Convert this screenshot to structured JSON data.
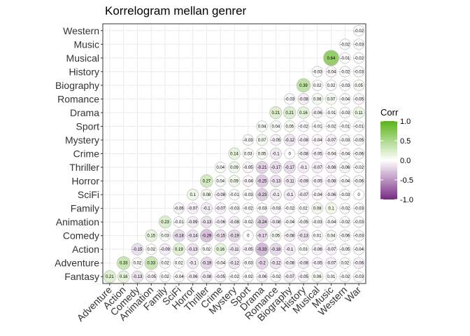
{
  "chart_data": {
    "type": "heatmap",
    "subtype": "correlogram-lower-triangle-circles",
    "title": "Korrelogram mellan genrer",
    "xlabel": "",
    "ylabel": "",
    "x_categories": [
      "Adventure",
      "Action",
      "Comedy",
      "Animation",
      "Family",
      "SciFi",
      "Horror",
      "Thriller",
      "Crime",
      "Mystery",
      "Sport",
      "Drama",
      "Romance",
      "Biography",
      "History",
      "Musical",
      "Music",
      "Western",
      "War"
    ],
    "y_categories": [
      "Fantasy",
      "Adventure",
      "Action",
      "Comedy",
      "Animation",
      "Family",
      "SciFi",
      "Horror",
      "Thriller",
      "Crime",
      "Mystery",
      "Sport",
      "Drama",
      "Romance",
      "Biography",
      "History",
      "Musical",
      "Music",
      "Western"
    ],
    "values": [
      [
        0.21,
        0.16,
        -0.13,
        -0.05,
        0.02,
        -0.04,
        -0.06,
        -0.08,
        -0.05,
        -0.02,
        -0.02,
        -0.06,
        -0.02,
        -0.07,
        -0.05,
        0.06,
        0.01,
        -0.02,
        -0.03
      ],
      [
        null,
        0.33,
        0.02,
        0.33,
        0.02,
        0.02,
        -0.1,
        -0.19,
        -0.04,
        -0.12,
        -0.03,
        -0.2,
        -0.12,
        -0.08,
        -0.08,
        -0.05,
        -0.07,
        0.02,
        -0.06
      ],
      [
        null,
        null,
        -0.15,
        0.02,
        -0.09,
        0.19,
        -0.13,
        0.02,
        0.16,
        -0.11,
        -0.05,
        -0.33,
        -0.18,
        -0.1,
        0.03,
        -0.06,
        -0.07,
        -0.05,
        -0.04
      ],
      [
        null,
        null,
        null,
        0.15,
        0.03,
        -0.18,
        -0.14,
        -0.29,
        -0.15,
        -0.19,
        0,
        -0.17,
        0.05,
        -0.08,
        -0.13,
        0.01,
        0.04,
        -0.06,
        -0.03
      ],
      [
        null,
        null,
        null,
        null,
        0.23,
        -0.01,
        -0.09,
        -0.13,
        -0.06,
        -0.08,
        -0.02,
        -0.24,
        -0.08,
        -0.04,
        -0.05,
        -0.03,
        -0.04,
        -0.02,
        -0.03
      ],
      [
        null,
        null,
        null,
        null,
        null,
        -0.06,
        -0.07,
        -0.1,
        -0.07,
        -0.03,
        -0.02,
        -0.03,
        -0.03,
        -0.02,
        0.02,
        0.08,
        0.1,
        -0.02,
        -0.03
      ],
      [
        null,
        null,
        null,
        null,
        null,
        null,
        0.1,
        0.08,
        -0.08,
        -0.01,
        -0.03,
        -0.23,
        -0.1,
        -0.1,
        -0.07,
        -0.04,
        -0.06,
        -0.03,
        0
      ],
      [
        null,
        null,
        null,
        null,
        null,
        null,
        null,
        0.27,
        0.04,
        0.09,
        -0.04,
        -0.25,
        -0.13,
        -0.11,
        -0.09,
        -0.05,
        -0.08,
        -0.04,
        -0.06
      ],
      [
        null,
        null,
        null,
        null,
        null,
        null,
        null,
        null,
        0.04,
        0.09,
        -0.05,
        -0.21,
        -0.17,
        -0.17,
        -0.1,
        -0.07,
        -0.08,
        -0.06,
        -0.02
      ],
      [
        null,
        null,
        null,
        null,
        null,
        null,
        null,
        null,
        null,
        0.14,
        0.03,
        0.05,
        -0.1,
        0,
        -0.08,
        -0.05,
        -0.04,
        -0.04,
        -0.06
      ],
      [
        null,
        null,
        null,
        null,
        null,
        null,
        null,
        null,
        null,
        null,
        -0.03,
        0.07,
        -0.05,
        -0.12,
        -0.08,
        -0.04,
        -0.07,
        -0.03,
        -0.05
      ],
      [
        null,
        null,
        null,
        null,
        null,
        null,
        null,
        null,
        null,
        null,
        null,
        0.04,
        0.04,
        0.05,
        -0.02,
        -0.01,
        -0.02,
        -0.01,
        -0.01
      ],
      [
        null,
        null,
        null,
        null,
        null,
        null,
        null,
        null,
        null,
        null,
        null,
        null,
        0.21,
        0.21,
        0.16,
        -0.06,
        -0.01,
        -0.03,
        0.11
      ],
      [
        null,
        null,
        null,
        null,
        null,
        null,
        null,
        null,
        null,
        null,
        null,
        null,
        null,
        -0.03,
        -0.08,
        0.06,
        0.07,
        -0.04,
        -0.05
      ],
      [
        null,
        null,
        null,
        null,
        null,
        null,
        null,
        null,
        null,
        null,
        null,
        null,
        null,
        null,
        0.39,
        0.02,
        0.02,
        -0.03,
        0.05
      ],
      [
        null,
        null,
        null,
        null,
        null,
        null,
        null,
        null,
        null,
        null,
        null,
        null,
        null,
        null,
        null,
        -0.03,
        -0.04,
        -0.02,
        -0.03
      ],
      [
        null,
        null,
        null,
        null,
        null,
        null,
        null,
        null,
        null,
        null,
        null,
        null,
        null,
        null,
        null,
        null,
        0.64,
        -0.01,
        -0.02
      ],
      [
        null,
        null,
        null,
        null,
        null,
        null,
        null,
        null,
        null,
        null,
        null,
        null,
        null,
        null,
        null,
        null,
        null,
        -0.02,
        -0.03
      ],
      [
        null,
        null,
        null,
        null,
        null,
        null,
        null,
        null,
        null,
        null,
        null,
        null,
        null,
        null,
        null,
        null,
        null,
        null,
        -0.02
      ]
    ],
    "value_range": [
      -1,
      1
    ],
    "grid": true,
    "legend": {
      "title": "Corr",
      "placement": "right",
      "ticks": [
        1.0,
        0.5,
        0.0,
        -0.5,
        -1.0
      ],
      "tick_labels": [
        "1.0",
        "0.5",
        "0.0",
        "-0.5",
        "-1.0"
      ]
    },
    "colors": {
      "low": "#762a83",
      "mid": "#ffffff",
      "high": "#5ab317",
      "grid": "#ebebeb",
      "panel_border": "#333333",
      "circle_outline": "#b3b3b3"
    }
  }
}
